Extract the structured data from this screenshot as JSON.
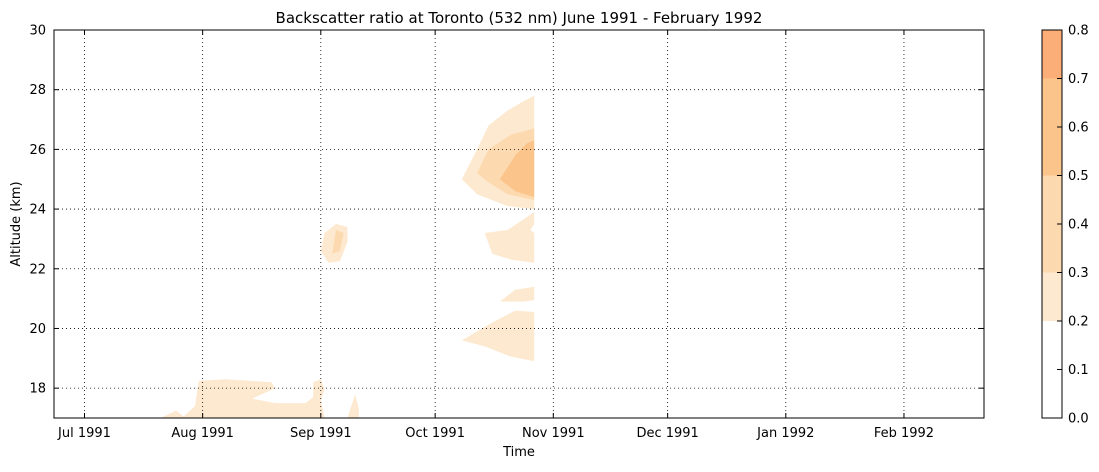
{
  "chart_data": {
    "type": "contourf",
    "title": "Backscatter ratio at Toronto (532 nm) June 1991 - February 1992",
    "xlabel": "Time",
    "ylabel": "Altitude (km)",
    "xlim": [
      "1991-06-23",
      "1992-02-22"
    ],
    "ylim": [
      17,
      30
    ],
    "x_ticks": [
      {
        "date": "1991-07-01",
        "label": "Jul 1991"
      },
      {
        "date": "1991-08-01",
        "label": "Aug 1991"
      },
      {
        "date": "1991-09-01",
        "label": "Sep 1991"
      },
      {
        "date": "1991-10-01",
        "label": "Oct 1991"
      },
      {
        "date": "1991-11-01",
        "label": "Nov 1991"
      },
      {
        "date": "1991-12-01",
        "label": "Dec 1991"
      },
      {
        "date": "1992-01-01",
        "label": "Jan 1992"
      },
      {
        "date": "1992-02-01",
        "label": "Feb 1992"
      }
    ],
    "y_ticks": [
      {
        "value": 18,
        "label": "18"
      },
      {
        "value": 20,
        "label": "20"
      },
      {
        "value": 22,
        "label": "22"
      },
      {
        "value": 24,
        "label": "24"
      },
      {
        "value": 26,
        "label": "26"
      },
      {
        "value": 28,
        "label": "28"
      },
      {
        "value": 30,
        "label": "30"
      }
    ],
    "grid": true,
    "colorbar": {
      "levels": [
        0.0,
        0.1,
        0.2,
        0.3,
        0.4,
        0.5,
        0.6,
        0.7,
        0.8
      ],
      "tick_labels": [
        "0.0",
        "0.1",
        "0.2",
        "0.3",
        "0.4",
        "0.5",
        "0.6",
        "0.7",
        "0.8"
      ],
      "band_colors": [
        "#ffffff",
        "#ffffff",
        "#fde9cf",
        "#fdd9af",
        "#fdd9af",
        "#fbc48b",
        "#fbc48b",
        "#fbae77"
      ]
    },
    "regions": [
      {
        "level_min": 0.2,
        "level_max": 0.3,
        "points": [
          [
            "1991-07-21",
            17.0
          ],
          [
            "1991-07-25",
            17.25
          ],
          [
            "1991-07-27",
            17.05
          ],
          [
            "1991-07-30",
            17.4
          ],
          [
            "1991-07-31",
            18.25
          ],
          [
            "1991-08-07",
            18.3
          ],
          [
            "1991-08-19",
            18.2
          ],
          [
            "1991-08-20",
            18.0
          ],
          [
            "1991-08-14",
            17.65
          ],
          [
            "1991-08-20",
            17.5
          ],
          [
            "1991-08-28",
            17.5
          ],
          [
            "1991-08-30",
            17.7
          ],
          [
            "1991-08-30",
            18.2
          ],
          [
            "1991-09-01",
            18.3
          ],
          [
            "1991-09-02",
            17.95
          ],
          [
            "1991-09-01",
            17.6
          ],
          [
            "1991-09-02",
            17.0
          ]
        ]
      },
      {
        "level_min": 0.2,
        "level_max": 0.3,
        "points": [
          [
            "1991-09-08",
            17.0
          ],
          [
            "1991-09-09",
            17.4
          ],
          [
            "1991-09-10",
            17.8
          ],
          [
            "1991-09-11",
            17.3
          ],
          [
            "1991-09-11",
            17.0
          ]
        ]
      },
      {
        "level_min": 0.2,
        "level_max": 0.3,
        "points": [
          [
            "1991-09-01",
            22.6
          ],
          [
            "1991-09-02",
            23.2
          ],
          [
            "1991-09-05",
            23.5
          ],
          [
            "1991-09-08",
            23.4
          ],
          [
            "1991-09-08",
            22.9
          ],
          [
            "1991-09-06",
            22.25
          ],
          [
            "1991-09-03",
            22.2
          ]
        ]
      },
      {
        "level_min": 0.3,
        "level_max": 0.5,
        "points": [
          [
            "1991-09-04",
            22.5
          ],
          [
            "1991-09-05",
            23.3
          ],
          [
            "1991-09-07",
            23.2
          ],
          [
            "1991-09-06",
            22.6
          ]
        ]
      },
      {
        "level_min": 0.2,
        "level_max": 0.3,
        "points": [
          [
            "1991-10-08",
            25.0
          ],
          [
            "1991-10-12",
            26.0
          ],
          [
            "1991-10-15",
            26.8
          ],
          [
            "1991-10-20",
            27.3
          ],
          [
            "1991-10-24",
            27.6
          ],
          [
            "1991-10-27",
            27.8
          ],
          [
            "1991-10-27",
            24.0
          ],
          [
            "1991-10-20",
            24.1
          ],
          [
            "1991-10-12",
            24.5
          ]
        ]
      },
      {
        "level_min": 0.3,
        "level_max": 0.5,
        "points": [
          [
            "1991-10-12",
            25.2
          ],
          [
            "1991-10-15",
            26.0
          ],
          [
            "1991-10-21",
            26.5
          ],
          [
            "1991-10-27",
            26.7
          ],
          [
            "1991-10-27",
            24.3
          ],
          [
            "1991-10-20",
            24.5
          ],
          [
            "1991-10-15",
            24.9
          ]
        ]
      },
      {
        "level_min": 0.5,
        "level_max": 0.7,
        "points": [
          [
            "1991-10-18",
            25.0
          ],
          [
            "1991-10-22",
            25.8
          ],
          [
            "1991-10-25",
            26.2
          ],
          [
            "1991-10-27",
            26.3
          ],
          [
            "1991-10-27",
            24.4
          ],
          [
            "1991-10-22",
            24.6
          ]
        ]
      },
      {
        "level_min": 0.2,
        "level_max": 0.3,
        "points": [
          [
            "1991-10-14",
            23.2
          ],
          [
            "1991-10-16",
            22.5
          ],
          [
            "1991-10-21",
            22.3
          ],
          [
            "1991-10-27",
            22.2
          ],
          [
            "1991-10-27",
            23.2
          ],
          [
            "1991-10-26",
            23.3
          ],
          [
            "1991-10-27",
            23.5
          ],
          [
            "1991-10-27",
            23.9
          ],
          [
            "1991-10-20",
            23.3
          ]
        ]
      },
      {
        "level_min": 0.2,
        "level_max": 0.3,
        "points": [
          [
            "1991-10-24",
            20.9
          ],
          [
            "1991-10-27",
            20.95
          ],
          [
            "1991-10-27",
            21.4
          ],
          [
            "1991-10-22",
            21.3
          ],
          [
            "1991-10-18",
            20.9
          ]
        ]
      },
      {
        "level_min": 0.2,
        "level_max": 0.3,
        "points": [
          [
            "1991-10-08",
            19.6
          ],
          [
            "1991-10-16",
            20.2
          ],
          [
            "1991-10-22",
            20.6
          ],
          [
            "1991-10-27",
            20.55
          ],
          [
            "1991-10-27",
            18.9
          ],
          [
            "1991-10-21",
            19.05
          ],
          [
            "1991-10-14",
            19.4
          ]
        ]
      }
    ]
  }
}
